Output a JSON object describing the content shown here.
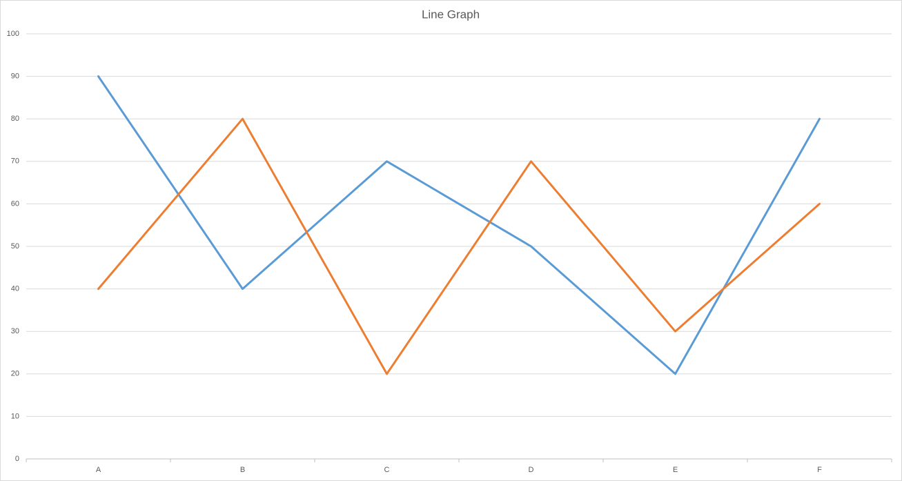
{
  "chart_data": {
    "type": "line",
    "title": "Line Graph",
    "categories": [
      "A",
      "B",
      "C",
      "D",
      "E",
      "F"
    ],
    "series": [
      {
        "color": "#5b9bd5",
        "values": [
          90,
          40,
          70,
          50,
          20,
          80
        ]
      },
      {
        "color": "#ed7d31",
        "values": [
          40,
          80,
          20,
          70,
          30,
          60
        ]
      }
    ],
    "ylim": [
      0,
      100
    ],
    "yticks": [
      0,
      10,
      20,
      30,
      40,
      50,
      60,
      70,
      80,
      90,
      100
    ],
    "grid": true
  }
}
